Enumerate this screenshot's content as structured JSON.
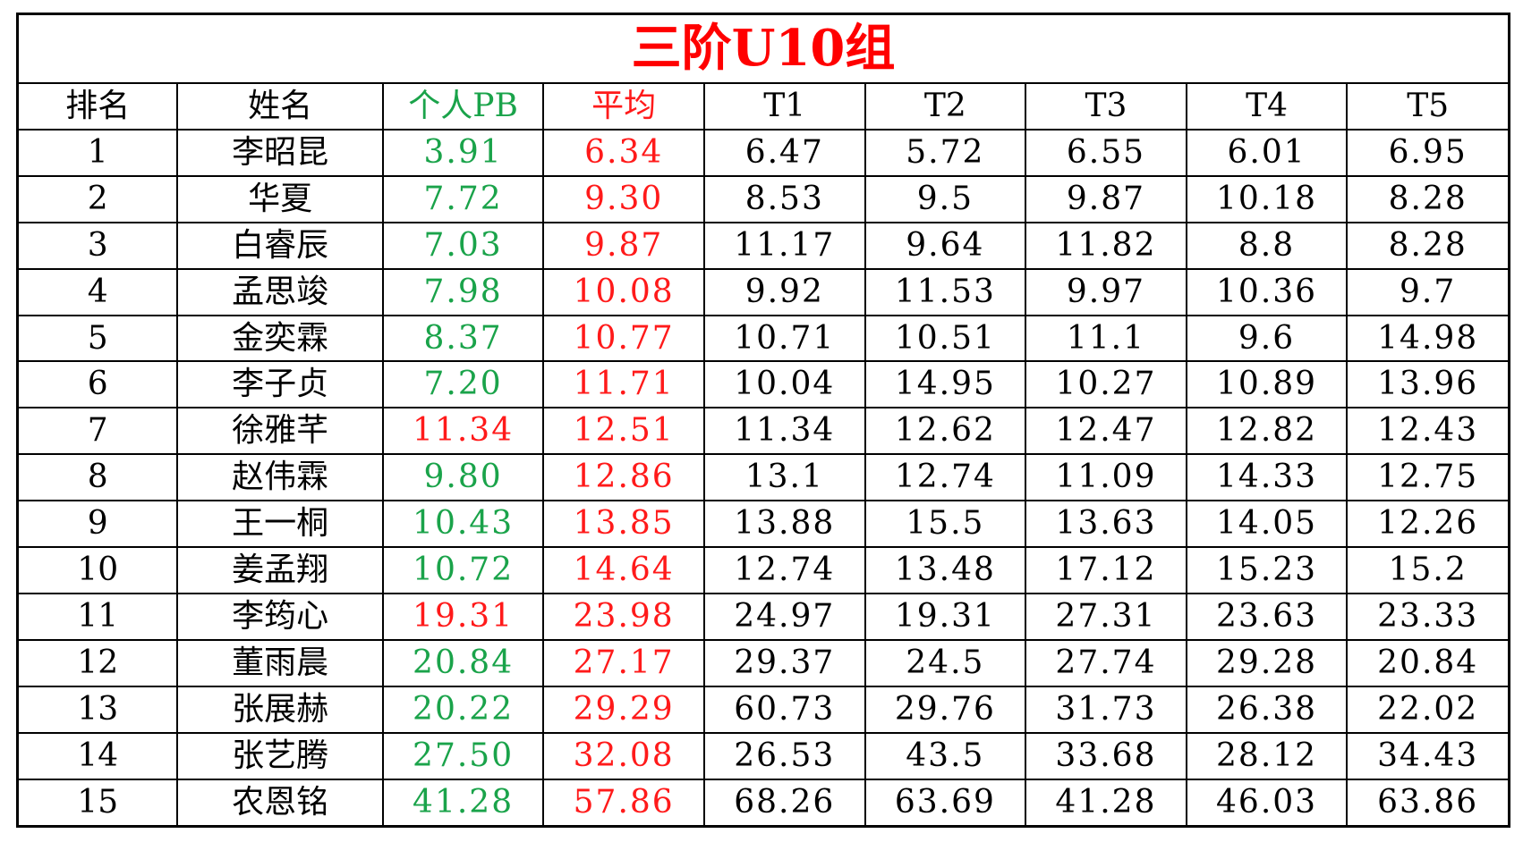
{
  "title": "三阶U10组",
  "colors": {
    "title": "#ff0000",
    "pb_normal": "#1aa34a",
    "pb_highlight": "#ff1a1a",
    "average": "#ff1a1a",
    "text": "#000000"
  },
  "headers": {
    "rank": "排名",
    "name": "姓名",
    "pb": "个人PB",
    "avg": "平均",
    "t1": "T1",
    "t2": "T2",
    "t3": "T3",
    "t4": "T4",
    "t5": "T5"
  },
  "rows": [
    {
      "rank": "1",
      "name": "李昭昆",
      "pb": "3.91",
      "pb_color": "green",
      "avg": "6.34",
      "t1": "6.47",
      "t2": "5.72",
      "t3": "6.55",
      "t4": "6.01",
      "t5": "6.95"
    },
    {
      "rank": "2",
      "name": "华夏",
      "pb": "7.72",
      "pb_color": "green",
      "avg": "9.30",
      "t1": "8.53",
      "t2": "9.5",
      "t3": "9.87",
      "t4": "10.18",
      "t5": "8.28"
    },
    {
      "rank": "3",
      "name": "白睿辰",
      "pb": "7.03",
      "pb_color": "green",
      "avg": "9.87",
      "t1": "11.17",
      "t2": "9.64",
      "t3": "11.82",
      "t4": "8.8",
      "t5": "8.28"
    },
    {
      "rank": "4",
      "name": "孟思竣",
      "pb": "7.98",
      "pb_color": "green",
      "avg": "10.08",
      "t1": "9.92",
      "t2": "11.53",
      "t3": "9.97",
      "t4": "10.36",
      "t5": "9.7"
    },
    {
      "rank": "5",
      "name": "金奕霖",
      "pb": "8.37",
      "pb_color": "green",
      "avg": "10.77",
      "t1": "10.71",
      "t2": "10.51",
      "t3": "11.1",
      "t4": "9.6",
      "t5": "14.98"
    },
    {
      "rank": "6",
      "name": "李子贞",
      "pb": "7.20",
      "pb_color": "green",
      "avg": "11.71",
      "t1": "10.04",
      "t2": "14.95",
      "t3": "10.27",
      "t4": "10.89",
      "t5": "13.96"
    },
    {
      "rank": "7",
      "name": "徐雅芊",
      "pb": "11.34",
      "pb_color": "red",
      "avg": "12.51",
      "t1": "11.34",
      "t2": "12.62",
      "t3": "12.47",
      "t4": "12.82",
      "t5": "12.43"
    },
    {
      "rank": "8",
      "name": "赵伟霖",
      "pb": "9.80",
      "pb_color": "green",
      "avg": "12.86",
      "t1": "13.1",
      "t2": "12.74",
      "t3": "11.09",
      "t4": "14.33",
      "t5": "12.75"
    },
    {
      "rank": "9",
      "name": "王一桐",
      "pb": "10.43",
      "pb_color": "green",
      "avg": "13.85",
      "t1": "13.88",
      "t2": "15.5",
      "t3": "13.63",
      "t4": "14.05",
      "t5": "12.26"
    },
    {
      "rank": "10",
      "name": "姜孟翔",
      "pb": "10.72",
      "pb_color": "green",
      "avg": "14.64",
      "t1": "12.74",
      "t2": "13.48",
      "t3": "17.12",
      "t4": "15.23",
      "t5": "15.2"
    },
    {
      "rank": "11",
      "name": "李筠心",
      "pb": "19.31",
      "pb_color": "red",
      "avg": "23.98",
      "t1": "24.97",
      "t2": "19.31",
      "t3": "27.31",
      "t4": "23.63",
      "t5": "23.33"
    },
    {
      "rank": "12",
      "name": "董雨晨",
      "pb": "20.84",
      "pb_color": "green",
      "avg": "27.17",
      "t1": "29.37",
      "t2": "24.5",
      "t3": "27.74",
      "t4": "29.28",
      "t5": "20.84"
    },
    {
      "rank": "13",
      "name": "张展赫",
      "pb": "20.22",
      "pb_color": "green",
      "avg": "29.29",
      "t1": "60.73",
      "t2": "29.76",
      "t3": "31.73",
      "t4": "26.38",
      "t5": "22.02"
    },
    {
      "rank": "14",
      "name": "张艺腾",
      "pb": "27.50",
      "pb_color": "green",
      "avg": "32.08",
      "t1": "26.53",
      "t2": "43.5",
      "t3": "33.68",
      "t4": "28.12",
      "t5": "34.43"
    },
    {
      "rank": "15",
      "name": "农恩铭",
      "pb": "41.28",
      "pb_color": "green",
      "avg": "57.86",
      "t1": "68.26",
      "t2": "63.69",
      "t3": "41.28",
      "t4": "46.03",
      "t5": "63.86"
    }
  ]
}
